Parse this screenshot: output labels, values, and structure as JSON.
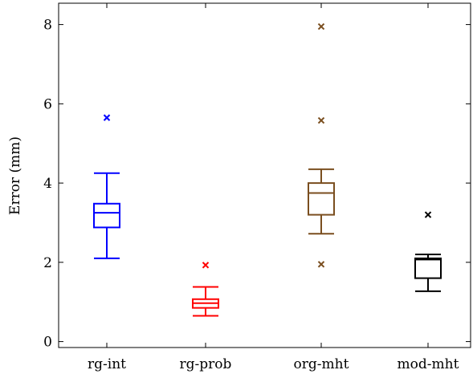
{
  "chart_data": {
    "type": "boxplot",
    "title": "",
    "xlabel": "",
    "ylabel": "Error (mm)",
    "ylim": [
      -0.15,
      8.7
    ],
    "yticks": [
      0,
      2,
      4,
      6,
      8
    ],
    "yticklabels": [
      "0",
      "2",
      "4",
      "6",
      "8"
    ],
    "categories": [
      "rg-int",
      "rg-prob",
      "org-mht",
      "mod-mht"
    ],
    "grid": false,
    "legend": "none",
    "series": [
      {
        "category": "rg-int",
        "color": "#0000ff",
        "whisker_low": 2.1,
        "q1": 2.88,
        "median": 3.25,
        "q3": 3.48,
        "whisker_high": 4.25,
        "outliers": [
          5.65
        ]
      },
      {
        "category": "rg-prob",
        "color": "#ff0000",
        "whisker_low": 0.65,
        "q1": 0.85,
        "median": 0.97,
        "q3": 1.07,
        "whisker_high": 1.38,
        "outliers": [
          1.93
        ]
      },
      {
        "category": "org-mht",
        "color": "#7a4e1f",
        "whisker_low": 2.72,
        "q1": 3.2,
        "median": 3.75,
        "q3": 4.0,
        "whisker_high": 4.35,
        "outliers": [
          7.95,
          5.58,
          1.95
        ]
      },
      {
        "category": "mod-mht",
        "color": "#000000",
        "whisker_low": 1.27,
        "q1": 1.6,
        "median": 2.07,
        "q3": 2.1,
        "whisker_high": 2.2,
        "outliers": [
          3.2
        ]
      }
    ]
  }
}
